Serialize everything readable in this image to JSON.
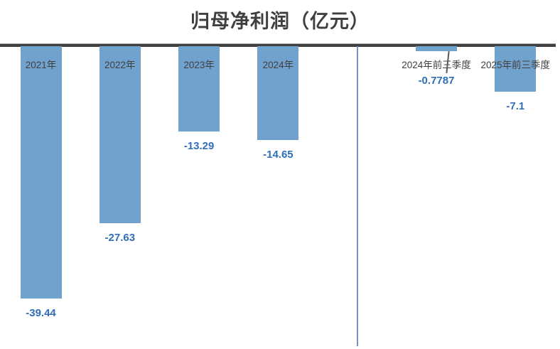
{
  "title": "归母净利润（亿元）",
  "chart_data": {
    "type": "bar",
    "title": "归母净利润（亿元）",
    "unit": "亿元",
    "categories": [
      "2021年",
      "2022年",
      "2023年",
      "2024年",
      "2024年前三季度",
      "2025年前三季度"
    ],
    "values": [
      -39.44,
      -27.63,
      -13.29,
      -14.65,
      -0.7787,
      -7.1
    ],
    "value_labels": [
      "-39.44",
      "-27.63",
      "-13.29",
      "-14.65",
      "-0.7787",
      "-7.1"
    ],
    "divider_after_index": 3,
    "baseline_value": 0,
    "ylim": [
      -45,
      0
    ],
    "xlabel": "",
    "ylabel": "",
    "grid": false,
    "legend_position": "none",
    "orientation": "vertical-negative",
    "notes": "all bars hang downward from a top baseline; a vertical line separates annual bars from quarterly bars; tiny 2024前三季度 bar has a leader line to its labels"
  },
  "colors": {
    "bar": "#71a1cd",
    "value_label": "#2e6fb7",
    "category_label": "#404040",
    "baseline": "#404040",
    "divider": "#6c96cb",
    "title": "#3f3f3f",
    "background": "#ffffff"
  }
}
